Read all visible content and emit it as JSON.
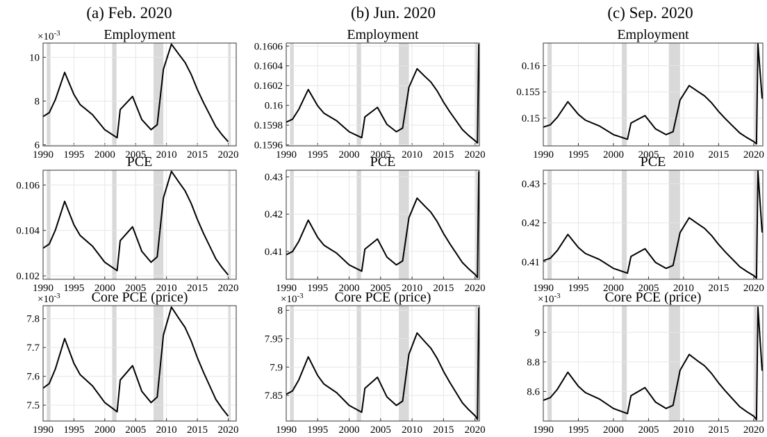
{
  "column_titles": [
    "(a) Feb. 2020",
    "(b) Jun. 2020",
    "(c) Sep. 2020"
  ],
  "chart_data": [
    {
      "type": "line",
      "title": "Employment",
      "y_exponent_label": {
        "base": "×10",
        "exponent": "-3"
      },
      "color": "#000000",
      "grid": true,
      "x": [
        1990,
        1991,
        1992,
        1993.5,
        1995,
        1996,
        1998,
        2000,
        2002,
        2002.5,
        2004.5,
        2006,
        2007.5,
        2008.5,
        2009.5,
        2010.8,
        2012,
        2013,
        2014,
        2015,
        2016,
        2017,
        2018,
        2019,
        2020
      ],
      "values": [
        7.29,
        7.47,
        8.07,
        9.31,
        8.3,
        7.84,
        7.38,
        6.69,
        6.32,
        7.61,
        8.21,
        7.15,
        6.69,
        6.92,
        9.45,
        10.6,
        10.14,
        9.77,
        9.22,
        8.53,
        7.93,
        7.38,
        6.83,
        6.46,
        6.14
      ],
      "xlim": [
        1990,
        2021.3
      ],
      "xticks": [
        1990,
        1995,
        2000,
        2005,
        2010,
        2015,
        2020
      ],
      "ylim": [
        5.95,
        10.65
      ],
      "yticks": [
        6,
        8,
        10
      ],
      "shaded_spans": [
        [
          1990.6,
          1991.2
        ],
        [
          2001.2,
          2001.9
        ],
        [
          2007.9,
          2009.5
        ],
        [
          2020.1,
          2020.4
        ]
      ]
    },
    {
      "type": "line",
      "title": "Employment",
      "color": "#000000",
      "grid": true,
      "x": [
        1990,
        1991,
        1992,
        1993.5,
        1995,
        1996,
        1998,
        2000,
        2002,
        2002.5,
        2004.5,
        2006,
        2007.5,
        2008.5,
        2009.5,
        2010.8,
        2012,
        2013,
        2014,
        2015,
        2016,
        2017,
        2018,
        2019,
        2020,
        2020.4,
        2020.6
      ],
      "values": [
        0.15983,
        0.15986,
        0.15996,
        0.16016,
        0.159995,
        0.15992,
        0.159845,
        0.159733,
        0.159673,
        0.159883,
        0.15998,
        0.159808,
        0.159733,
        0.15977,
        0.160183,
        0.16037,
        0.160295,
        0.160235,
        0.160145,
        0.160033,
        0.159935,
        0.159845,
        0.159755,
        0.159695,
        0.159643,
        0.15962,
        0.16062
      ],
      "xlim": [
        1990,
        2020.7
      ],
      "xticks": [
        1990,
        1995,
        2000,
        2005,
        2010,
        2015,
        2020
      ],
      "ylim": [
        0.15959,
        0.16063
      ],
      "yticks": [
        0.1596,
        0.1598,
        0.16,
        0.1602,
        0.1604,
        0.1606
      ],
      "shaded_spans": [
        [
          1990.6,
          1991.2
        ],
        [
          2001.2,
          2001.9
        ],
        [
          2007.9,
          2009.5
        ],
        [
          2020.1,
          2020.4
        ]
      ]
    },
    {
      "type": "line",
      "title": "Employment",
      "color": "#000000",
      "grid": true,
      "x": [
        1990,
        1991,
        1992,
        1993.5,
        1995,
        1996,
        1998,
        2000,
        2002,
        2002.5,
        2004.5,
        2006,
        2007.5,
        2008.5,
        2009.5,
        2010.8,
        2012,
        2013,
        2014,
        2015,
        2016,
        2017,
        2018,
        2019,
        2020,
        2020.4,
        2020.6,
        2021.2
      ],
      "values": [
        0.14828,
        0.14872,
        0.15015,
        0.15312,
        0.1507,
        0.1496,
        0.1485,
        0.14685,
        0.14597,
        0.14905,
        0.15048,
        0.14795,
        0.14685,
        0.1474,
        0.15345,
        0.1562,
        0.1551,
        0.15422,
        0.1529,
        0.15125,
        0.14982,
        0.1485,
        0.14718,
        0.1463,
        0.14553,
        0.1451,
        0.1642,
        0.1537
      ],
      "xlim": [
        1990,
        2021.3
      ],
      "xticks": [
        1990,
        1995,
        2000,
        2005,
        2010,
        2015,
        2020
      ],
      "ylim": [
        0.1447,
        0.1643
      ],
      "yticks": [
        0.15,
        0.155,
        0.16
      ],
      "shaded_spans": [
        [
          1990.6,
          1991.2
        ],
        [
          2001.2,
          2001.9
        ],
        [
          2007.9,
          2009.5
        ],
        [
          2020.1,
          2020.4
        ]
      ]
    },
    {
      "type": "line",
      "title": "PCE",
      "color": "#000000",
      "grid": true,
      "x": [
        1990,
        1991,
        1992,
        1993.5,
        1995,
        1996,
        1998,
        2000,
        2002,
        2002.5,
        2004.5,
        2006,
        2007.5,
        2008.5,
        2009.5,
        2010.8,
        2012,
        2013,
        2014,
        2015,
        2016,
        2017,
        2018,
        2019,
        2020
      ],
      "values": [
        0.10322,
        0.1034,
        0.10402,
        0.10528,
        0.10425,
        0.10378,
        0.10331,
        0.1026,
        0.10223,
        0.10355,
        0.10416,
        0.10308,
        0.1026,
        0.10284,
        0.10543,
        0.1066,
        0.10613,
        0.10575,
        0.10519,
        0.10449,
        0.10387,
        0.10331,
        0.10275,
        0.10237,
        0.10204
      ],
      "xlim": [
        1990,
        2021.3
      ],
      "xticks": [
        1990,
        1995,
        2000,
        2005,
        2010,
        2015,
        2020
      ],
      "ylim": [
        0.10185,
        0.10665
      ],
      "yticks": [
        0.102,
        0.104,
        0.106
      ],
      "shaded_spans": [
        [
          1990.6,
          1991.2
        ],
        [
          2001.2,
          2001.9
        ],
        [
          2007.9,
          2009.5
        ],
        [
          2020.1,
          2020.4
        ]
      ]
    },
    {
      "type": "line",
      "title": "PCE",
      "color": "#000000",
      "grid": true,
      "x": [
        1990,
        1991,
        1992,
        1993.5,
        1995,
        1996,
        1998,
        2000,
        2002,
        2002.5,
        2004.5,
        2006,
        2007.5,
        2008.5,
        2009.5,
        2010.8,
        2012,
        2013,
        2014,
        2015,
        2016,
        2017,
        2018,
        2019,
        2020,
        2020.4,
        2020.6
      ],
      "values": [
        0.40911,
        0.40995,
        0.4127,
        0.41839,
        0.41375,
        0.41164,
        0.40953,
        0.40637,
        0.40468,
        0.41059,
        0.41333,
        0.40848,
        0.40637,
        0.40742,
        0.41903,
        0.4243,
        0.42219,
        0.4205,
        0.41797,
        0.41481,
        0.41206,
        0.40953,
        0.407,
        0.40531,
        0.40383,
        0.403,
        0.4315
      ],
      "xlim": [
        1990,
        2020.7
      ],
      "xticks": [
        1990,
        1995,
        2000,
        2005,
        2010,
        2015,
        2020
      ],
      "ylim": [
        0.4025,
        0.4318
      ],
      "yticks": [
        0.41,
        0.42,
        0.43
      ],
      "shaded_spans": [
        [
          1990.6,
          1991.2
        ],
        [
          2001.2,
          2001.9
        ],
        [
          2007.9,
          2009.5
        ],
        [
          2020.1,
          2020.4
        ]
      ]
    },
    {
      "type": "line",
      "title": "PCE",
      "color": "#000000",
      "grid": true,
      "x": [
        1990,
        1991,
        1992,
        1993.5,
        1995,
        1996,
        1998,
        2000,
        2002,
        2002.5,
        2004.5,
        2006,
        2007.5,
        2008.5,
        2009.5,
        2010.8,
        2012,
        2013,
        2014,
        2015,
        2016,
        2017,
        2018,
        2019,
        2020,
        2020.4,
        2020.6,
        2021.2
      ],
      "values": [
        0.41028,
        0.4109,
        0.41289,
        0.41702,
        0.41365,
        0.41212,
        0.41059,
        0.4083,
        0.40707,
        0.41136,
        0.41334,
        0.40983,
        0.4083,
        0.40906,
        0.41748,
        0.4213,
        0.41977,
        0.41855,
        0.41671,
        0.41442,
        0.41243,
        0.41059,
        0.40875,
        0.40753,
        0.40646,
        0.4058,
        0.4333,
        0.4175
      ],
      "xlim": [
        1990,
        2021.3
      ],
      "xticks": [
        1990,
        1995,
        2000,
        2005,
        2010,
        2015,
        2020
      ],
      "ylim": [
        0.4055,
        0.4335
      ],
      "yticks": [
        0.41,
        0.42,
        0.43
      ],
      "shaded_spans": [
        [
          1990.6,
          1991.2
        ],
        [
          2001.2,
          2001.9
        ],
        [
          2007.9,
          2009.5
        ],
        [
          2020.1,
          2020.4
        ]
      ]
    },
    {
      "type": "line",
      "title": "Core PCE (price)",
      "y_exponent_label": {
        "base": "×10",
        "exponent": "-3"
      },
      "color": "#000000",
      "grid": true,
      "x": [
        1990,
        1991,
        1992,
        1993.5,
        1995,
        1996,
        1998,
        2000,
        2002,
        2002.5,
        2004.5,
        2006,
        2007.5,
        2008.5,
        2009.5,
        2010.8,
        2012,
        2013,
        2014,
        2015,
        2016,
        2017,
        2018,
        2019,
        2020
      ],
      "values": [
        7.559,
        7.575,
        7.626,
        7.731,
        7.645,
        7.606,
        7.567,
        7.509,
        7.477,
        7.587,
        7.637,
        7.548,
        7.509,
        7.528,
        7.743,
        7.84,
        7.801,
        7.77,
        7.723,
        7.665,
        7.614,
        7.567,
        7.52,
        7.489,
        7.462
      ],
      "xlim": [
        1990,
        2021.3
      ],
      "xticks": [
        1990,
        1995,
        2000,
        2005,
        2010,
        2015,
        2020
      ],
      "ylim": [
        7.445,
        7.845
      ],
      "yticks": [
        7.5,
        7.6,
        7.7,
        7.8
      ],
      "shaded_spans": [
        [
          1990.6,
          1991.2
        ],
        [
          2001.2,
          2001.9
        ],
        [
          2007.9,
          2009.5
        ],
        [
          2020.1,
          2020.4
        ]
      ]
    },
    {
      "type": "line",
      "title": "Core PCE (price)",
      "y_exponent_label": {
        "base": "×10",
        "exponent": "-3"
      },
      "color": "#000000",
      "grid": true,
      "x": [
        1990,
        1991,
        1992,
        1993.5,
        1995,
        1996,
        1998,
        2000,
        2002,
        2002.5,
        2004.5,
        2006,
        2007.5,
        2008.5,
        2009.5,
        2010.8,
        2012,
        2013,
        2014,
        2015,
        2016,
        2017,
        2018,
        2019,
        2020,
        2020.4,
        2020.6
      ],
      "values": [
        7.852,
        7.858,
        7.8775,
        7.918,
        7.885,
        7.87,
        7.855,
        7.8325,
        7.8205,
        7.8625,
        7.882,
        7.8475,
        7.8325,
        7.84,
        7.9225,
        7.96,
        7.945,
        7.933,
        7.915,
        7.8925,
        7.873,
        7.855,
        7.837,
        7.825,
        7.8145,
        7.808,
        8.005
      ],
      "xlim": [
        1990,
        2020.7
      ],
      "xticks": [
        1990,
        1995,
        2000,
        2005,
        2010,
        2015,
        2020
      ],
      "ylim": [
        7.805,
        8.008
      ],
      "yticks": [
        7.85,
        7.9,
        7.95,
        8
      ],
      "shaded_spans": [
        [
          1990.6,
          1991.2
        ],
        [
          2001.2,
          2001.9
        ],
        [
          2007.9,
          2009.5
        ],
        [
          2020.1,
          2020.4
        ]
      ]
    },
    {
      "type": "line",
      "title": "Core PCE (price)",
      "y_exponent_label": {
        "base": "×10",
        "exponent": "-3"
      },
      "color": "#000000",
      "grid": true,
      "x": [
        1990,
        1991,
        1992,
        1993.5,
        1995,
        1996,
        1998,
        2000,
        2002,
        2002.5,
        2004.5,
        2006,
        2007.5,
        2008.5,
        2009.5,
        2010.8,
        2012,
        2013,
        2014,
        2015,
        2016,
        2017,
        2018,
        2019,
        2020,
        2020.4,
        2020.6,
        2021.2
      ],
      "values": [
        8.54,
        8.558,
        8.614,
        8.73,
        8.635,
        8.592,
        8.549,
        8.485,
        8.45,
        8.571,
        8.626,
        8.528,
        8.485,
        8.506,
        8.743,
        8.85,
        8.807,
        8.773,
        8.721,
        8.657,
        8.601,
        8.549,
        8.497,
        8.463,
        8.433,
        8.41,
        9.17,
        8.74
      ],
      "xlim": [
        1990,
        2021.3
      ],
      "xticks": [
        1990,
        1995,
        2000,
        2005,
        2010,
        2015,
        2020
      ],
      "ylim": [
        8.4,
        9.18
      ],
      "yticks": [
        8.6,
        8.8,
        9
      ],
      "shaded_spans": [
        [
          1990.6,
          1991.2
        ],
        [
          2001.2,
          2001.9
        ],
        [
          2007.9,
          2009.5
        ],
        [
          2020.1,
          2020.4
        ]
      ]
    }
  ]
}
